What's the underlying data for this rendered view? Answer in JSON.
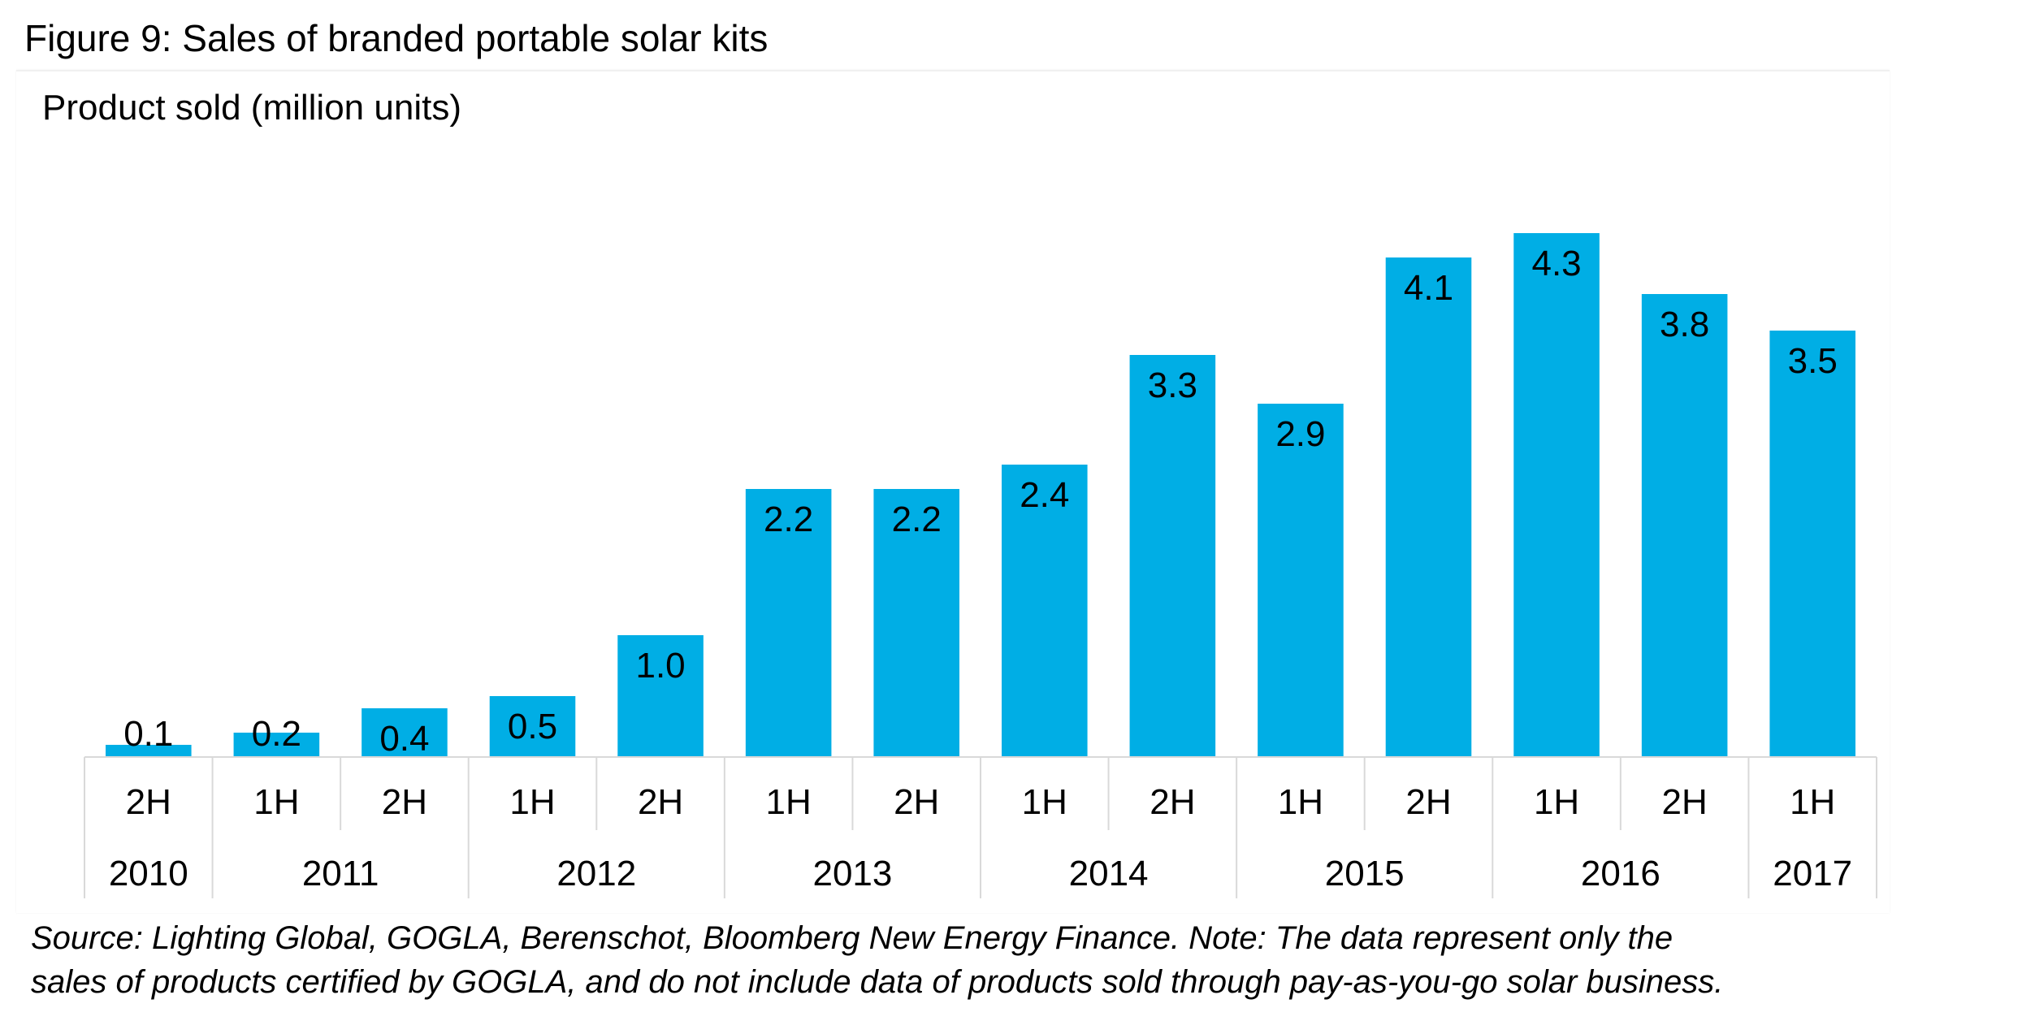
{
  "figure_title": "Figure 9: Sales of branded portable solar kits",
  "chart_data": {
    "type": "bar",
    "ylabel": "Product sold (million units)",
    "xlabel": "",
    "categories": [
      "2H 2010",
      "1H 2011",
      "2H 2011",
      "1H 2012",
      "2H 2012",
      "1H 2013",
      "2H 2013",
      "1H 2014",
      "2H 2014",
      "1H 2015",
      "2H 2015",
      "1H 2016",
      "2H 2016",
      "1H 2017"
    ],
    "half_labels": [
      "2H",
      "1H",
      "2H",
      "1H",
      "2H",
      "1H",
      "2H",
      "1H",
      "2H",
      "1H",
      "2H",
      "1H",
      "2H",
      "1H"
    ],
    "years": [
      {
        "label": "2010",
        "count": 1
      },
      {
        "label": "2011",
        "count": 2
      },
      {
        "label": "2012",
        "count": 2
      },
      {
        "label": "2013",
        "count": 2
      },
      {
        "label": "2014",
        "count": 2
      },
      {
        "label": "2015",
        "count": 2
      },
      {
        "label": "2016",
        "count": 2
      },
      {
        "label": "2017",
        "count": 1
      }
    ],
    "values": [
      0.1,
      0.2,
      0.4,
      0.5,
      1.0,
      2.2,
      2.2,
      2.4,
      3.3,
      2.9,
      4.1,
      4.3,
      3.8,
      3.5
    ],
    "value_labels": [
      "0.1",
      "0.2",
      "0.4",
      "0.5",
      "1.0",
      "2.2",
      "2.2",
      "2.4",
      "3.3",
      "2.9",
      "4.1",
      "4.3",
      "3.8",
      "3.5"
    ],
    "ylim": [
      0,
      4.6
    ],
    "grid": false,
    "legend": "none",
    "bar_color": "#00AEE5"
  },
  "source_lines": [
    "Source: Lighting Global, GOGLA, Berenschot, Bloomberg New Energy Finance. Note: The data represent only the",
    "sales of products certified by GOGLA, and do not include data of products sold through pay-as-you-go solar business."
  ]
}
